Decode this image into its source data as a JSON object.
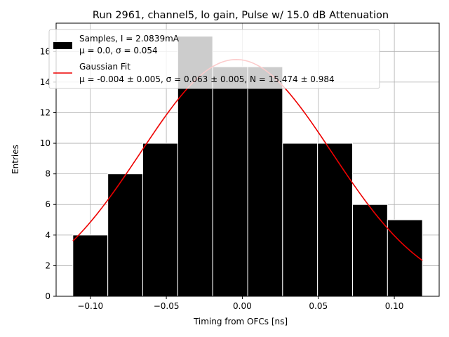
{
  "chart_data": {
    "type": "bar",
    "title": "Run 2961, channel5, lo gain, Pulse w/ 15.0 dB Attenuation",
    "xlabel": "Timing from OFCs [ns]",
    "ylabel": "Entries",
    "xlim": [
      -0.1225,
      0.1295
    ],
    "ylim": [
      0,
      17.85
    ],
    "xticks": [
      -0.1,
      -0.05,
      0.0,
      0.05,
      0.1
    ],
    "xtick_labels": [
      "−0.10",
      "−0.05",
      "0.00",
      "0.05",
      "0.10"
    ],
    "yticks": [
      0,
      2,
      4,
      6,
      8,
      10,
      12,
      14,
      16
    ],
    "yticks_labels": [
      "0",
      "2",
      "4",
      "6",
      "8",
      "10",
      "12",
      "14",
      "16"
    ],
    "grid": true,
    "legend_position": "upper-left",
    "bins": {
      "edges": [
        -0.1115,
        -0.0885,
        -0.0655,
        -0.0425,
        -0.0195,
        0.0035,
        0.0265,
        0.0495,
        0.0725,
        0.0955,
        0.1185
      ],
      "counts": [
        4,
        8,
        10,
        17,
        15,
        15,
        10,
        10,
        6,
        5
      ],
      "color": "#000000",
      "edge_color": "#ffffff"
    },
    "series": [
      {
        "name": "Samples, I = 2.0839mA",
        "name_line2": "μ = 0.0, σ = 0.054",
        "kind": "histogram",
        "color": "#000000"
      },
      {
        "name": "Gaussian Fit",
        "name_line2": "μ = -0.004 ± 0.005, σ = 0.063 ± 0.005, N = 15.474 ± 0.984",
        "kind": "curve",
        "color": "#ee0000",
        "mu": -0.004,
        "sigma": 0.063,
        "N": 15.474,
        "x_range": [
          -0.1115,
          0.1185
        ]
      }
    ]
  }
}
